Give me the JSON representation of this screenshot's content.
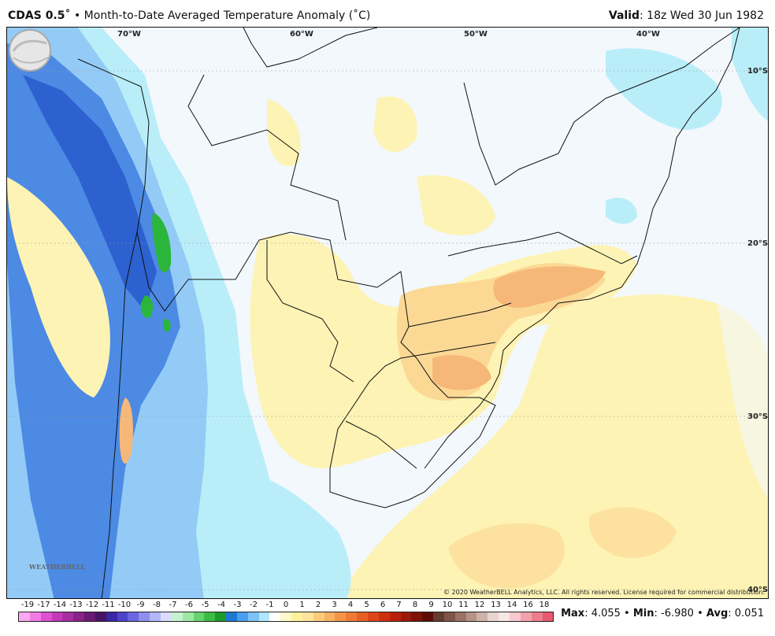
{
  "header": {
    "model": "CDAS 0.5˚",
    "bullet": "•",
    "description": "Month-to-Date Averaged Temperature Anomaly (˚C)",
    "valid_label": "Valid",
    "valid_value": ": 18z Wed 30 Jun 1982"
  },
  "map": {
    "lon_labels": [
      "70°W",
      "60°W",
      "50°W",
      "40°W"
    ],
    "lat_labels": [
      "10°S",
      "20°S",
      "30°S",
      "40°S"
    ],
    "copyright": "© 2020 WeatherBELL Analytics, LLC. All rights reserved. License required for commercial distribution.",
    "logo_text": "WEATHERBELL",
    "colors": {
      "ocean": "#f3f8fd",
      "warm_light": "#fdf3b4",
      "warm_mid": "#fbd995",
      "warm_strong": "#f6b878",
      "cool_light": "#b9eef9",
      "cool_mid": "#8fc7f5",
      "cool_strong": "#3f7fe0",
      "cool_deep": "#2456c9",
      "green": "#2bb53a",
      "border": "#111111"
    }
  },
  "colorbar": {
    "labels": [
      "-19",
      "-17",
      "-14",
      "-13",
      "-12",
      "-11",
      "-10",
      "-9",
      "-8",
      "-7",
      "-6",
      "-5",
      "-4",
      "-3",
      "-2",
      "-1",
      "0",
      "1",
      "2",
      "3",
      "4",
      "5",
      "6",
      "7",
      "8",
      "9",
      "10",
      "11",
      "12",
      "13",
      "14",
      "16",
      "18"
    ],
    "colors": [
      "#f8a9f0",
      "#f07be5",
      "#de4fd2",
      "#c43ab9",
      "#a72ea0",
      "#8a2288",
      "#6a1a73",
      "#4a1264",
      "#3a27a6",
      "#4c44c8",
      "#6b66e0",
      "#8f8ff0",
      "#b3b6f7",
      "#d8def9",
      "#c7f2d0",
      "#9de8a3",
      "#66d36d",
      "#3bbd45",
      "#1f9a2e",
      "#1d78d2",
      "#4b9ff0",
      "#7cc3f6",
      "#b0e5fb",
      "#ffffff",
      "#fff9c7",
      "#fff19c",
      "#fde49a",
      "#fbcb7a",
      "#f8b160",
      "#f39548",
      "#ee7a35",
      "#e85f25",
      "#de4518",
      "#ce3010",
      "#b8220c",
      "#9c1909",
      "#7d1206",
      "#5c0d05",
      "#653a30",
      "#7e5548",
      "#9a7366",
      "#b69386",
      "#cfb3a8",
      "#e7d4cd",
      "#f6e6e4",
      "#f7c8cf",
      "#f2a2ad",
      "#ec7d8d",
      "#e85a6d"
    ]
  },
  "stats": {
    "max_label": "Max",
    "max_value": ": 4.055",
    "sep1": " • ",
    "min_label": "Min",
    "min_value": ": -6.980",
    "sep2": " • ",
    "avg_label": "Avg",
    "avg_value": ": 0.051"
  }
}
